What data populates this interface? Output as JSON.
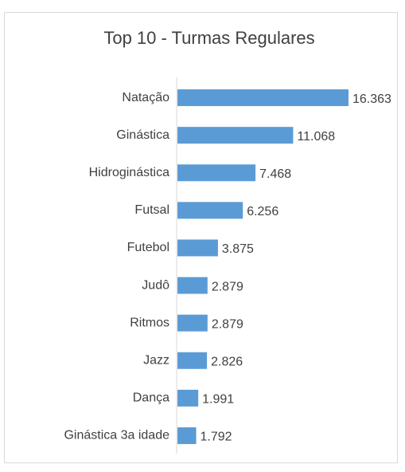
{
  "chart_data": {
    "type": "bar",
    "orientation": "horizontal",
    "title": "Top 10 - Turmas Regulares",
    "categories": [
      "Natação",
      "Ginástica",
      "Hidroginástica",
      "Futsal",
      "Futebol",
      "Judô",
      "Ritmos",
      "Jazz",
      "Dança",
      "Ginástica 3a idade"
    ],
    "values": [
      16363,
      11068,
      7468,
      6256,
      3875,
      2879,
      2879,
      2826,
      1991,
      1792
    ],
    "value_labels": [
      "16.363",
      "11.068",
      "7.468",
      "6.256",
      "3.875",
      "2.879",
      "2.879",
      "2.826",
      "1.991",
      "1.792"
    ],
    "color": "#5b9bd5"
  }
}
